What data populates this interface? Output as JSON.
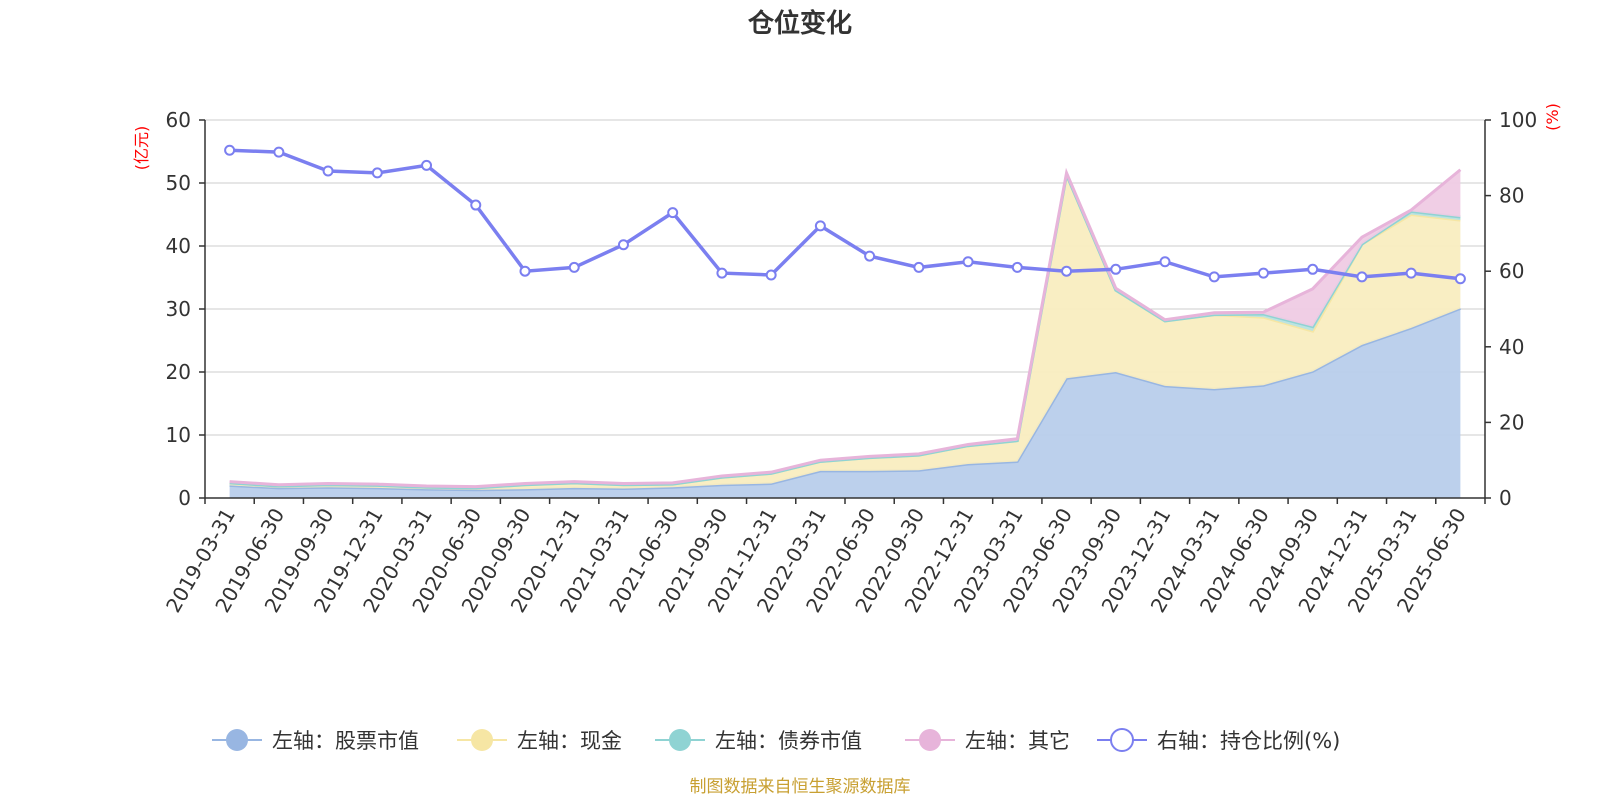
{
  "chart_data": {
    "type": "area",
    "title": "仓位变化",
    "left_unit": "(亿元)",
    "right_unit": "(%)",
    "x": [
      "2019-03-31",
      "2019-06-30",
      "2019-09-30",
      "2019-12-31",
      "2020-03-31",
      "2020-06-30",
      "2020-09-30",
      "2020-12-31",
      "2021-03-31",
      "2021-06-30",
      "2021-09-30",
      "2021-12-31",
      "2022-03-31",
      "2022-06-30",
      "2022-09-30",
      "2022-12-31",
      "2023-03-31",
      "2023-06-30",
      "2023-09-30",
      "2023-12-31",
      "2024-03-31",
      "2024-06-30",
      "2024-09-30",
      "2024-12-31",
      "2025-03-31",
      "2025-06-30"
    ],
    "left_ylim": [
      0,
      60
    ],
    "left_yticks": [
      0,
      10,
      20,
      30,
      40,
      50,
      60
    ],
    "right_ylim": [
      0,
      100
    ],
    "right_yticks": [
      0,
      20,
      40,
      60,
      80,
      100
    ],
    "stacked_series": [
      {
        "name": "左轴：股票市值",
        "color": "#98b6e2",
        "fill": "#b8cdeb",
        "values": [
          2.0,
          1.6,
          1.7,
          1.6,
          1.4,
          1.3,
          1.4,
          1.6,
          1.5,
          1.7,
          2.1,
          2.3,
          4.3,
          4.3,
          4.4,
          5.4,
          5.8,
          19.0,
          20.0,
          17.8,
          17.3,
          17.9,
          20.1,
          24.3,
          27.0,
          30.1
        ]
      },
      {
        "name": "左轴：现金",
        "color": "#f6e6a4",
        "fill": "#f9edc0",
        "values": [
          0.4,
          0.3,
          0.4,
          0.4,
          0.3,
          0.3,
          0.7,
          0.8,
          0.6,
          0.5,
          1.2,
          1.6,
          1.5,
          2.1,
          2.4,
          2.9,
          3.3,
          32.3,
          13.0,
          10.3,
          11.8,
          10.8,
          6.4,
          16.0,
          18.0,
          14.0
        ]
      },
      {
        "name": "左轴：债券市值",
        "color": "#8fd3d3",
        "fill": "#b8e3e3",
        "values": [
          0,
          0,
          0,
          0,
          0,
          0,
          0,
          0,
          0,
          0,
          0,
          0,
          0,
          0,
          0,
          0,
          0,
          0,
          0,
          0,
          0,
          0.5,
          0.7,
          0,
          0.5,
          0.5
        ]
      },
      {
        "name": "左轴：其它",
        "color": "#e7b4da",
        "fill": "#efcbe4",
        "values": [
          0.2,
          0.2,
          0.2,
          0.2,
          0.2,
          0.2,
          0.2,
          0.2,
          0.2,
          0.2,
          0.2,
          0.2,
          0.2,
          0.2,
          0.2,
          0.2,
          0.3,
          0.3,
          0.3,
          0.2,
          0.3,
          0.3,
          6.0,
          1.1,
          0.2,
          7.5
        ]
      }
    ],
    "line_series": {
      "name": "右轴：持仓比例(%)",
      "color": "#7b7ff0",
      "values": [
        92.0,
        91.5,
        86.5,
        86.0,
        88.0,
        77.5,
        60.0,
        61.0,
        67.0,
        75.5,
        59.5,
        59.0,
        72.0,
        64.0,
        61.0,
        62.5,
        61.0,
        60.0,
        60.5,
        62.5,
        58.5,
        59.5,
        60.5,
        58.5,
        59.5,
        58.0
      ]
    },
    "grid": true,
    "legend_position": "bottom"
  },
  "source_note": "制图数据来自恒生聚源数据库"
}
